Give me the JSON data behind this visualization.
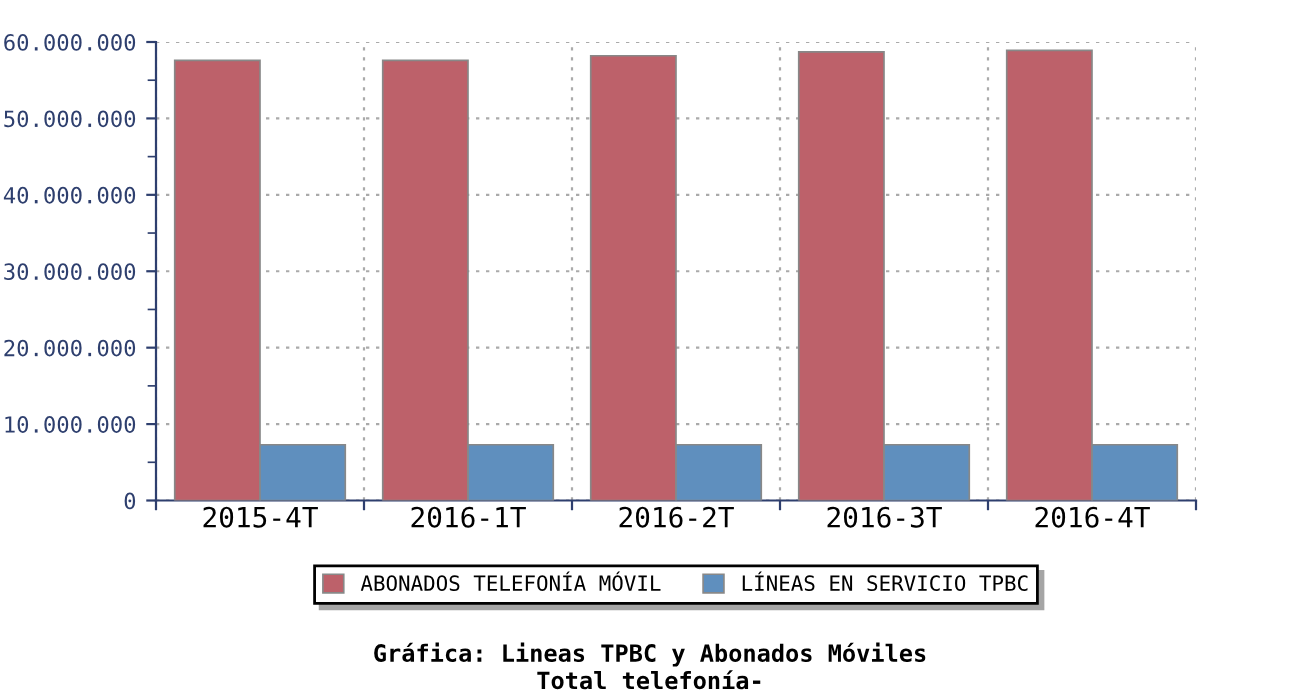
{
  "chart_data": {
    "type": "bar",
    "title": "Gráfica: Lineas TPBC y Abonados Móviles",
    "subtitle": "Total telefonía-",
    "categories": [
      "2015-4T",
      "2016-1T",
      "2016-2T",
      "2016-3T",
      "2016-4T"
    ],
    "series": [
      {
        "name": "ABONADOS TELEFONÍA MÓVIL",
        "color": "#bd616a",
        "values": [
          57600000,
          57600000,
          58200000,
          58700000,
          58900000
        ]
      },
      {
        "name": "LÍNEAS EN SERVICIO TPBC",
        "color": "#5f8fbe",
        "values": [
          7300000,
          7300000,
          7300000,
          7300000,
          7300000
        ]
      }
    ],
    "ylim": [
      0,
      60000000
    ],
    "yticks": [
      {
        "value": 0,
        "label": "0"
      },
      {
        "value": 10000000,
        "label": "10.000.000"
      },
      {
        "value": 20000000,
        "label": "20.000.000"
      },
      {
        "value": 30000000,
        "label": "30.000.000"
      },
      {
        "value": 40000000,
        "label": "40.000.000"
      },
      {
        "value": 50000000,
        "label": "50.000.000"
      },
      {
        "value": 60000000,
        "label": "60.000.000"
      }
    ],
    "grid": true,
    "legend": "bottom"
  }
}
